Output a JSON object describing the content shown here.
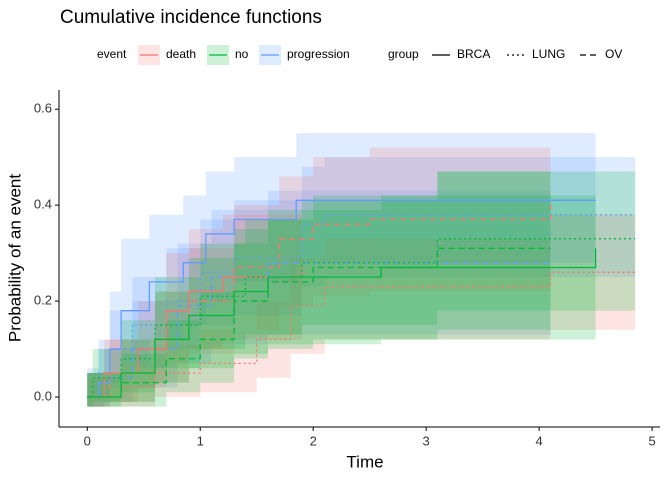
{
  "chart_data": {
    "type": "step",
    "title": "Cumulative incidence functions",
    "x_label": "Time",
    "y_label": "Probability of an event",
    "xlim": [
      -0.25,
      5.07
    ],
    "ylim": [
      -0.0625,
      0.64
    ],
    "xticks": [
      0,
      1,
      2,
      3,
      4,
      5
    ],
    "yticks": [
      {
        "value": 0,
        "label": "0.0"
      },
      0.2,
      0.4,
      0.6
    ],
    "legend": {
      "event": {
        "title": "event",
        "items": [
          {
            "name": "death",
            "color": "#F8766D"
          },
          {
            "name": "no",
            "color": "#00BA38"
          },
          {
            "name": "progression",
            "color": "#619CFF"
          }
        ]
      },
      "group": {
        "title": "group",
        "items": [
          {
            "name": "BRCA",
            "linetype": "solid"
          },
          {
            "name": "LUNG",
            "linetype": "dotted"
          },
          {
            "name": "OV",
            "linetype": "dashed"
          }
        ]
      }
    },
    "series": [
      {
        "event": "progression",
        "group": "BRCA",
        "x": [
          0,
          0.1,
          0.2,
          0.3,
          0.55,
          0.85,
          1.05,
          1.3,
          1.85,
          4.5
        ],
        "values": [
          0,
          0.03,
          0.1,
          0.18,
          0.24,
          0.28,
          0.34,
          0.37,
          0.41,
          0.41
        ],
        "lower": [
          0,
          -0.02,
          0.02,
          0.07,
          0.12,
          0.15,
          0.2,
          0.24,
          0.28,
          0.28
        ],
        "upper": [
          0.05,
          0.1,
          0.22,
          0.33,
          0.38,
          0.42,
          0.47,
          0.5,
          0.55,
          0.55
        ]
      },
      {
        "event": "progression",
        "group": "LUNG",
        "x": [
          0,
          0.1,
          0.2,
          0.4,
          0.7,
          1.0,
          1.3,
          1.9,
          2.1,
          4.85
        ],
        "values": [
          0,
          0.05,
          0.1,
          0.15,
          0.2,
          0.26,
          0.29,
          0.36,
          0.38,
          0.38
        ],
        "lower": [
          -0.02,
          0,
          0.03,
          0.06,
          0.1,
          0.15,
          0.17,
          0.23,
          0.25,
          0.25
        ],
        "upper": [
          0.06,
          0.12,
          0.18,
          0.25,
          0.31,
          0.37,
          0.41,
          0.48,
          0.5,
          0.5
        ]
      },
      {
        "event": "progression",
        "group": "OV",
        "x": [
          0,
          0.15,
          0.4,
          0.8,
          1.1,
          1.6,
          4.1
        ],
        "values": [
          0,
          0.04,
          0.1,
          0.19,
          0.25,
          0.28,
          0.28
        ],
        "lower": [
          -0.02,
          -0.01,
          0.02,
          0.07,
          0.11,
          0.13,
          0.13
        ],
        "upper": [
          0.05,
          0.1,
          0.2,
          0.32,
          0.39,
          0.43,
          0.43
        ]
      },
      {
        "event": "death",
        "group": "BRCA",
        "x": [
          0,
          0.15,
          0.45,
          0.7,
          0.9,
          1.2,
          1.9
        ],
        "values": [
          0,
          0.05,
          0.1,
          0.18,
          0.22,
          0.25,
          0.27
        ],
        "lower": [
          -0.02,
          -0.01,
          0.02,
          0.07,
          0.1,
          0.12,
          0.13
        ],
        "upper": [
          0.05,
          0.12,
          0.2,
          0.3,
          0.35,
          0.38,
          0.4
        ]
      },
      {
        "event": "death",
        "group": "LUNG",
        "x": [
          0,
          0.3,
          0.6,
          1.0,
          1.5,
          1.8,
          2.1,
          4.1,
          4.85
        ],
        "values": [
          0,
          0.02,
          0.05,
          0.07,
          0.12,
          0.19,
          0.23,
          0.26,
          0.26
        ],
        "lower": [
          -0.02,
          -0.02,
          0,
          0.01,
          0.04,
          0.09,
          0.12,
          0.14,
          0.11
        ],
        "upper": [
          0.04,
          0.07,
          0.11,
          0.14,
          0.2,
          0.29,
          0.33,
          0.38,
          0.41
        ]
      },
      {
        "event": "death",
        "group": "OV",
        "x": [
          0,
          0.2,
          0.6,
          0.9,
          1.3,
          1.7,
          2.0,
          2.5,
          4.1
        ],
        "values": [
          0,
          0.05,
          0.12,
          0.2,
          0.27,
          0.33,
          0.36,
          0.37,
          0.41
        ],
        "lower": [
          -0.02,
          -0.01,
          0.03,
          0.09,
          0.14,
          0.19,
          0.21,
          0.22,
          0.22
        ],
        "upper": [
          0.05,
          0.12,
          0.22,
          0.31,
          0.4,
          0.46,
          0.5,
          0.52,
          0.6
        ]
      },
      {
        "event": "no",
        "group": "BRCA",
        "x": [
          0,
          0.3,
          0.6,
          0.9,
          1.3,
          1.6,
          2.6,
          4.5
        ],
        "values": [
          0,
          0.05,
          0.12,
          0.17,
          0.22,
          0.25,
          0.27,
          0.31
        ],
        "lower": [
          -0.02,
          -0.01,
          0.03,
          0.06,
          0.09,
          0.11,
          0.12,
          0.1
        ],
        "upper": [
          0.05,
          0.12,
          0.22,
          0.29,
          0.35,
          0.39,
          0.42,
          0.48
        ]
      },
      {
        "event": "no",
        "group": "LUNG",
        "x": [
          0,
          0.05,
          0.3,
          0.6,
          1.0,
          1.4,
          1.9,
          3.1,
          4.85
        ],
        "values": [
          0,
          0.04,
          0.08,
          0.15,
          0.21,
          0.25,
          0.28,
          0.33,
          0.33
        ],
        "lower": [
          -0.02,
          -0.01,
          0.01,
          0.06,
          0.1,
          0.13,
          0.15,
          0.18,
          0.18
        ],
        "upper": [
          0.05,
          0.1,
          0.16,
          0.25,
          0.32,
          0.37,
          0.41,
          0.47,
          0.47
        ]
      },
      {
        "event": "no",
        "group": "OV",
        "x": [
          0,
          0.3,
          0.7,
          1.0,
          1.3,
          1.6,
          2.0,
          3.1,
          4.1
        ],
        "values": [
          0,
          0.03,
          0.08,
          0.12,
          0.2,
          0.24,
          0.27,
          0.31,
          0.31
        ],
        "lower": [
          -0.02,
          -0.02,
          0.01,
          0.03,
          0.08,
          0.1,
          0.12,
          0.14,
          0.14
        ],
        "upper": [
          0.05,
          0.09,
          0.16,
          0.22,
          0.32,
          0.37,
          0.42,
          0.47,
          0.47
        ]
      }
    ]
  }
}
